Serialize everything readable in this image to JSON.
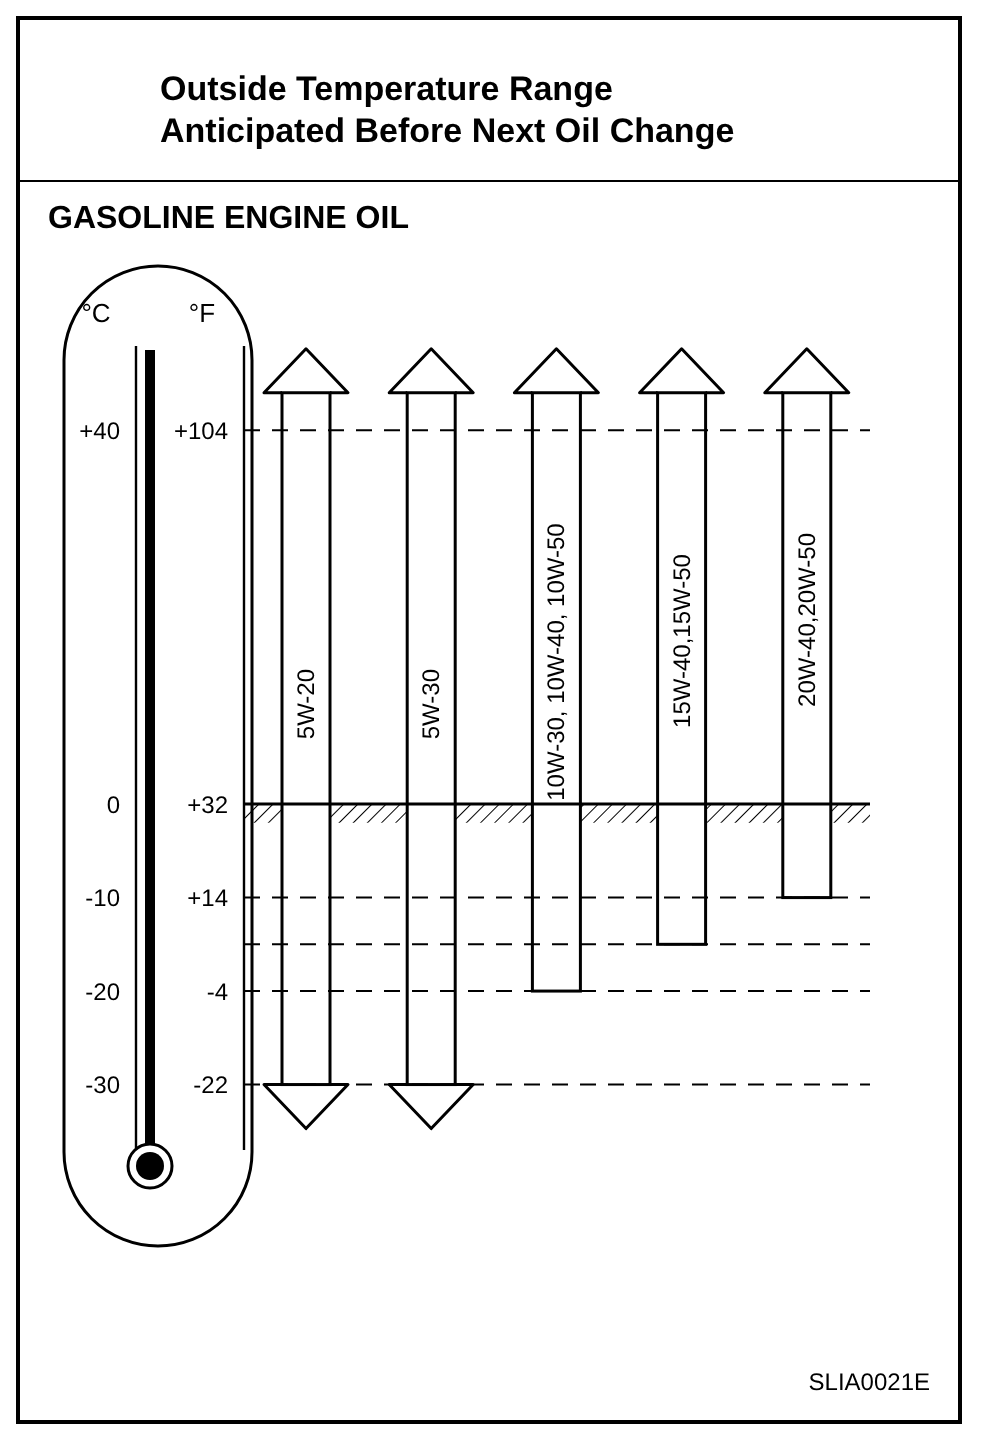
{
  "chart_data": {
    "type": "bar",
    "title": "Outside Temperature Range Anticipated Before Next Oil Change",
    "subtitle": "GASOLINE ENGINE OIL",
    "ylabel": "°C",
    "y2label": "°F",
    "categories": [
      "5W-20",
      "5W-30",
      "10W-30, 10W-40, 10W-50",
      "15W-40,15W-50",
      "20W-40,20W-50"
    ],
    "base": [
      -30,
      -30,
      -20,
      -15,
      -10
    ],
    "values": [
      74,
      74,
      64,
      59,
      54
    ],
    "color": "#ffffff",
    "ylim": [
      -37,
      49
    ],
    "yticks": [
      {
        "value": 40,
        "label": "+40"
      },
      0,
      -10,
      -20,
      -30
    ],
    "y2lim": [
      -34.6,
      120.2
    ],
    "y2ticks": [
      {
        "value": 104,
        "label": "+104"
      },
      {
        "value": 32,
        "label": "+32"
      },
      {
        "value": 14,
        "label": "+14"
      },
      -4,
      -22
    ],
    "ref_lines": [
      {
        "axis": "y",
        "value": 40,
        "line_style": "dashed"
      },
      {
        "axis": "y",
        "value": -10,
        "line_style": "dashed"
      },
      {
        "axis": "y",
        "value": -15,
        "line_style": "dashed"
      },
      {
        "axis": "y",
        "value": -20,
        "line_style": "dashed"
      },
      {
        "axis": "y",
        "value": -30,
        "line_style": "dashed"
      },
      {
        "axis": "y",
        "value": 0,
        "line_style": "solid"
      }
    ],
    "bands": [
      {
        "axis": "y",
        "from": -2,
        "to": 0
      }
    ],
    "grid": false,
    "legend": false,
    "annotations": [
      "SLIA0021E"
    ]
  }
}
